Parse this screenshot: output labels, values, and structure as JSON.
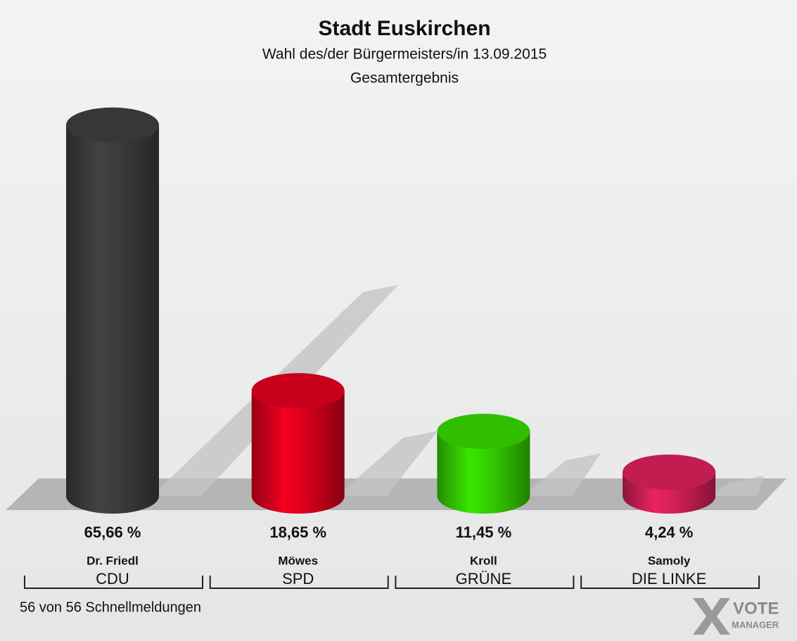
{
  "chart_data": {
    "type": "bar3d",
    "title": "Stadt Euskirchen",
    "subtitle": "Wahl des/der Bürgermeisters/in 13.09.2015",
    "subtitle2": "Gesamtergebnis",
    "categories": [
      "Dr. Friedl",
      "Möwes",
      "Kroll",
      "Samoly"
    ],
    "parties": [
      "CDU",
      "SPD",
      "GRÜNE",
      "DIE LINKE"
    ],
    "values": [
      65.66,
      18.65,
      11.45,
      4.24
    ],
    "value_labels": [
      "65,66 %",
      "18,65 %",
      "11,45 %",
      "4,24 %"
    ],
    "colors": [
      "#3a3a3a",
      "#d4001c",
      "#33c800",
      "#cc1e55"
    ],
    "footer": "56 von 56 Schnellmeldungen",
    "logo": [
      "VOTE",
      "MANAGER"
    ]
  }
}
